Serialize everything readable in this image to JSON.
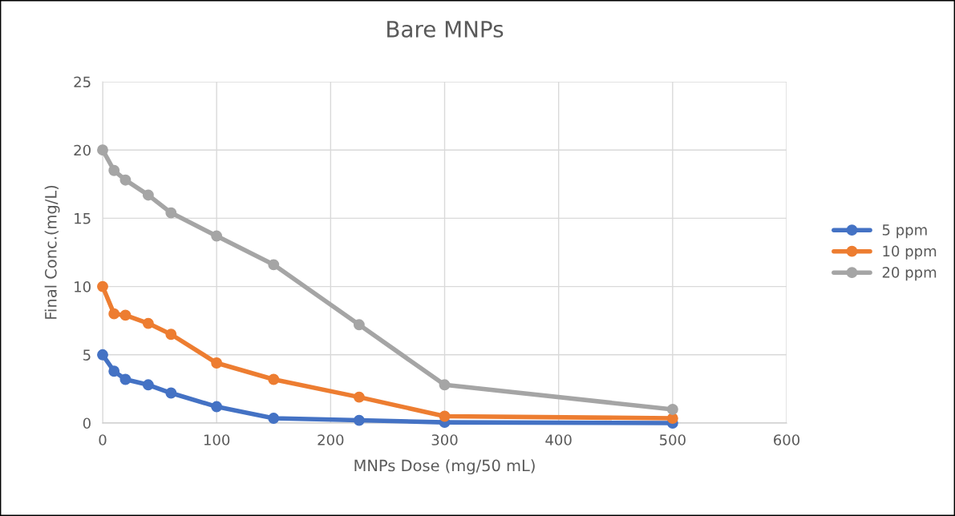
{
  "chart_data": {
    "type": "line",
    "title": "Bare MNPs",
    "xlabel": "MNPs Dose (mg/50 mL)",
    "ylabel": "Final Conc.(mg/L)",
    "x": [
      0,
      10,
      20,
      40,
      60,
      100,
      150,
      225,
      300,
      500
    ],
    "series": [
      {
        "name": "5 ppm",
        "color": "#4472c4",
        "values": [
          5.0,
          3.8,
          3.2,
          2.8,
          2.2,
          1.2,
          0.35,
          0.2,
          0.05,
          0.0
        ]
      },
      {
        "name": "10 ppm",
        "color": "#ed7d31",
        "values": [
          10.0,
          8.0,
          7.9,
          7.3,
          6.5,
          4.4,
          3.2,
          1.9,
          0.5,
          0.35
        ]
      },
      {
        "name": "20 ppm",
        "color": "#a5a5a5",
        "values": [
          20.0,
          18.5,
          17.8,
          16.7,
          15.4,
          13.7,
          11.6,
          7.2,
          2.8,
          1.0
        ]
      }
    ],
    "xlim": [
      0,
      600
    ],
    "xticks": [
      0,
      100,
      200,
      300,
      400,
      500,
      600
    ],
    "ylim": [
      0,
      25
    ],
    "yticks": [
      0,
      5,
      10,
      15,
      20,
      25
    ],
    "grid": true,
    "legend": "right",
    "marker": "circle",
    "line_style": "solid"
  }
}
